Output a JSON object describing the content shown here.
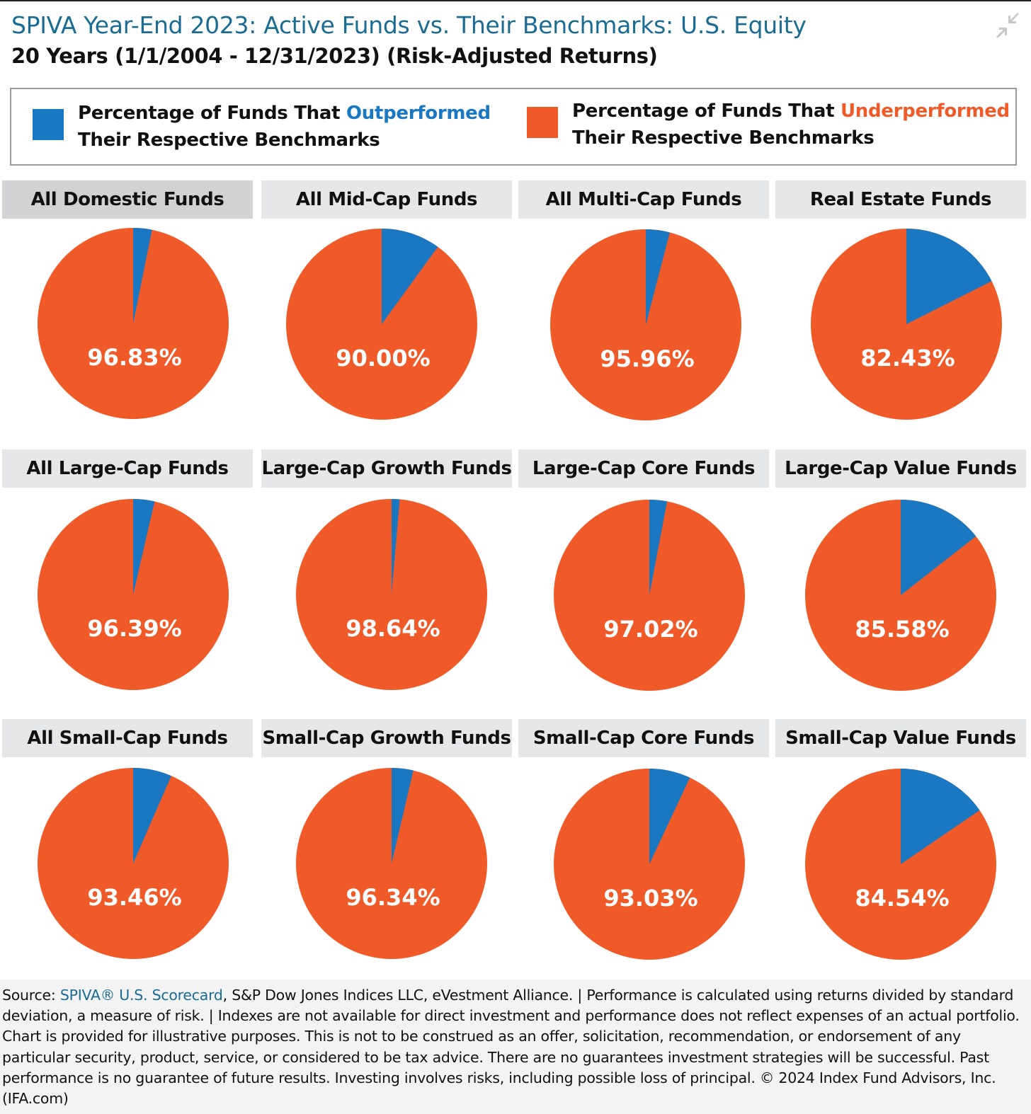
{
  "title": "SPIVA Year-End 2023: Active Funds vs. Their Benchmarks: U.S. Equity",
  "subtitle": "20 Years (1/1/2004 - 12/31/2023) (Risk-Adjusted Returns)",
  "legend": {
    "outperformed": {
      "prefix": "Percentage of Funds That ",
      "keyword": "Outperformed",
      "line2": "Their Respective Benchmarks",
      "color": "#1a78c2"
    },
    "underperformed": {
      "prefix": "Percentage of Funds That ",
      "keyword": "Underperformed",
      "line2": "Their Respective Benchmarks",
      "color": "#f05a28"
    }
  },
  "chart_data": [
    {
      "type": "pie",
      "title": "All Domestic Funds",
      "series": [
        {
          "name": "Outperformed",
          "value": 3.17
        },
        {
          "name": "Underperformed",
          "value": 96.83
        }
      ],
      "label": "96.83%"
    },
    {
      "type": "pie",
      "title": "All Mid-Cap Funds",
      "series": [
        {
          "name": "Outperformed",
          "value": 10.0
        },
        {
          "name": "Underperformed",
          "value": 90.0
        }
      ],
      "label": "90.00%"
    },
    {
      "type": "pie",
      "title": "All Multi-Cap Funds",
      "series": [
        {
          "name": "Outperformed",
          "value": 4.04
        },
        {
          "name": "Underperformed",
          "value": 95.96
        }
      ],
      "label": "95.96%"
    },
    {
      "type": "pie",
      "title": "Real Estate Funds",
      "series": [
        {
          "name": "Outperformed",
          "value": 17.57
        },
        {
          "name": "Underperformed",
          "value": 82.43
        }
      ],
      "label": "82.43%"
    },
    {
      "type": "pie",
      "title": "All Large-Cap Funds",
      "series": [
        {
          "name": "Outperformed",
          "value": 3.61
        },
        {
          "name": "Underperformed",
          "value": 96.39
        }
      ],
      "label": "96.39%"
    },
    {
      "type": "pie",
      "title": "Large-Cap Growth Funds",
      "series": [
        {
          "name": "Outperformed",
          "value": 1.36
        },
        {
          "name": "Underperformed",
          "value": 98.64
        }
      ],
      "label": "98.64%"
    },
    {
      "type": "pie",
      "title": "Large-Cap Core Funds",
      "series": [
        {
          "name": "Outperformed",
          "value": 2.98
        },
        {
          "name": "Underperformed",
          "value": 97.02
        }
      ],
      "label": "97.02%"
    },
    {
      "type": "pie",
      "title": "Large-Cap Value Funds",
      "series": [
        {
          "name": "Outperformed",
          "value": 14.42
        },
        {
          "name": "Underperformed",
          "value": 85.58
        }
      ],
      "label": "85.58%"
    },
    {
      "type": "pie",
      "title": "All Small-Cap Funds",
      "series": [
        {
          "name": "Outperformed",
          "value": 6.54
        },
        {
          "name": "Underperformed",
          "value": 93.46
        }
      ],
      "label": "93.46%"
    },
    {
      "type": "pie",
      "title": "Small-Cap Growth Funds",
      "series": [
        {
          "name": "Outperformed",
          "value": 3.66
        },
        {
          "name": "Underperformed",
          "value": 96.34
        }
      ],
      "label": "96.34%"
    },
    {
      "type": "pie",
      "title": "Small-Cap Core Funds",
      "series": [
        {
          "name": "Outperformed",
          "value": 6.97
        },
        {
          "name": "Underperformed",
          "value": 93.03
        }
      ],
      "label": "93.03%"
    },
    {
      "type": "pie",
      "title": "Small-Cap Value Funds",
      "series": [
        {
          "name": "Outperformed",
          "value": 15.46
        },
        {
          "name": "Underperformed",
          "value": 84.54
        }
      ],
      "label": "84.54%"
    }
  ],
  "footer": {
    "source_prefix": "Source: ",
    "source_link": "SPIVA® U.S. Scorecard",
    "body": ", S&P Dow Jones Indices LLC, eVestment Alliance. | Performance is calculated using returns divided by standard deviation, a measure of risk. | Indexes are not available for direct investment and performance does not reflect expenses of an actual portfolio. Chart is provided for illustrative purposes. This is not to be construed as an offer, solicitation, recommendation, or endorsement of any particular security, product, service, or considered to be tax advice. There are no guarantees investment strategies will be successful. Past performance is no guarantee of future results. Investing involves risks, including possible loss of principal. © 2024 Index Fund Advisors, Inc. (IFA.com)"
  },
  "colors": {
    "outperformed": "#1a78c2",
    "underperformed": "#f05a28",
    "title": "#1a6c93"
  }
}
